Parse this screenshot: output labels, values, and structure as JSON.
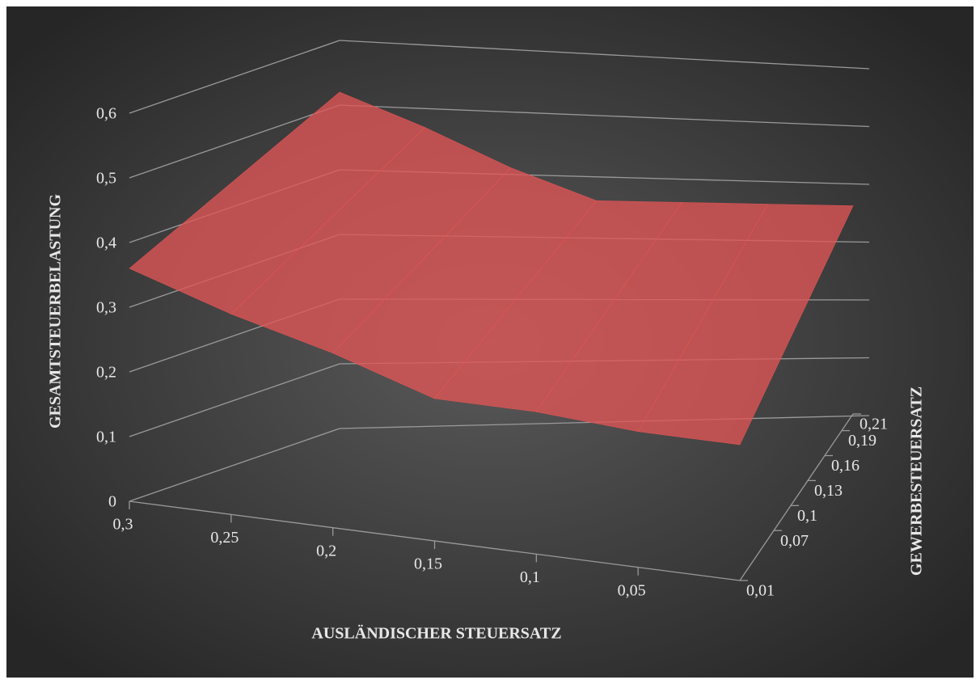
{
  "chart_data": {
    "type": "surface3d",
    "x_label": "AUSLÄNDISCHER STEUERSATZ",
    "y_label": "GESAMTSTEUERBELASTUNG",
    "z_label": "GEWERBESTEUERSATZ",
    "xlim": [
      0.3,
      0
    ],
    "xticks": [
      {
        "value": 0.3,
        "label": "0,3"
      },
      {
        "value": 0.25,
        "label": "0,25"
      },
      {
        "value": 0.2,
        "label": "0,2"
      },
      {
        "value": 0.15,
        "label": "0,15"
      },
      {
        "value": 0.1,
        "label": "0,1"
      },
      {
        "value": 0.05,
        "label": "0,05"
      }
    ],
    "ylim": [
      0,
      0.6
    ],
    "yticks": [
      0,
      {
        "value": 0.1,
        "label": "0,1"
      },
      {
        "value": 0.2,
        "label": "0,2"
      },
      {
        "value": 0.3,
        "label": "0,3"
      },
      {
        "value": 0.4,
        "label": "0,4"
      },
      {
        "value": 0.5,
        "label": "0,5"
      },
      {
        "value": 0.6,
        "label": "0,6"
      }
    ],
    "zlim": [
      0.01,
      0.21
    ],
    "zticks": [
      {
        "value": 0.01,
        "label": "0,01"
      },
      {
        "value": 0.07,
        "label": "0,07"
      },
      {
        "value": 0.1,
        "label": "0,1"
      },
      {
        "value": 0.13,
        "label": "0,13"
      },
      {
        "value": 0.16,
        "label": "0,16"
      },
      {
        "value": 0.19,
        "label": "0,19"
      },
      {
        "value": 0.21,
        "label": "0,21"
      }
    ],
    "x": [
      0.3,
      0.25,
      0.2,
      0.15,
      0.1,
      0.05,
      0
    ],
    "rows": [
      {
        "z": 0.01,
        "values": [
          0.36,
          0.31,
          0.27,
          0.22,
          0.22,
          0.21,
          0.21
        ]
      },
      {
        "z": 0.21,
        "values": [
          0.52,
          0.47,
          0.41,
          0.36,
          0.36,
          0.36,
          0.36
        ]
      }
    ],
    "color": "#e05555",
    "grid": true
  }
}
